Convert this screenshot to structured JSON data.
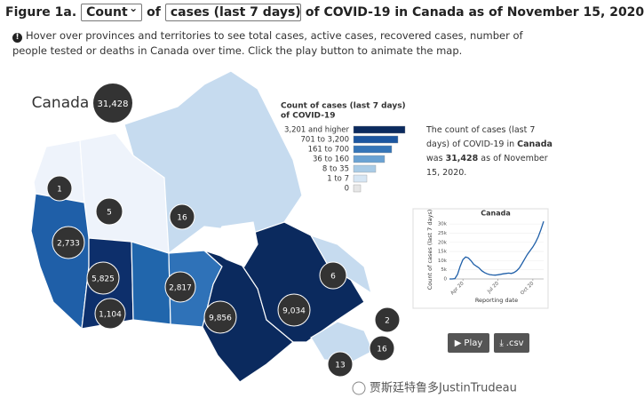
{
  "header": {
    "figure": "Figure 1a.",
    "measure_select": "Count",
    "of1": "of",
    "metric_select": "cases (last 7 days)",
    "rest": "of COVID-19 in Canada as of November 15, 2020",
    "info": "Hover over provinces and territories to see total cases, active cases, recovered cases, number of people tested or deaths in Canada over time. Click the play button to animate the map."
  },
  "map": {
    "country": "Canada",
    "country_total": "31,428",
    "regions": [
      {
        "name": "Yukon",
        "value": "1"
      },
      {
        "name": "Northwest Territories",
        "value": "5"
      },
      {
        "name": "Nunavut",
        "value": "16"
      },
      {
        "name": "British Columbia",
        "value": "2,733"
      },
      {
        "name": "Alberta",
        "value": "5,825"
      },
      {
        "name": "Saskatchewan",
        "value": "1,104"
      },
      {
        "name": "Manitoba",
        "value": "2,817"
      },
      {
        "name": "Ontario",
        "value": "9,856"
      },
      {
        "name": "Quebec",
        "value": "9,034"
      },
      {
        "name": "Newfoundland and Labrador",
        "value": "6"
      },
      {
        "name": "Prince Edward Island",
        "value": "2"
      },
      {
        "name": "Nova Scotia",
        "value": "16"
      },
      {
        "name": "New Brunswick",
        "value": "13"
      }
    ]
  },
  "legend": {
    "title_line1": "Count of cases (last 7 days)",
    "title_line2": "of COVID-19",
    "items": [
      {
        "label": "3,201 and higher",
        "color": "#0b2a5e"
      },
      {
        "label": "701 to 3,200",
        "color": "#1c56a0"
      },
      {
        "label": "161 to 700",
        "color": "#3575b8"
      },
      {
        "label": "36 to 160",
        "color": "#6aa2d3"
      },
      {
        "label": "8 to 35",
        "color": "#a9cbe6"
      },
      {
        "label": "1 to 7",
        "color": "#d6e6f4"
      },
      {
        "label": "0",
        "color": "#e6e6e6"
      }
    ]
  },
  "summary": {
    "part1": "The count of cases (last 7 days)",
    "part2": "of COVID-19 in",
    "region": "Canada",
    "part3": "was",
    "value": "31,428",
    "part4": "as of November 15, 2020."
  },
  "trend": {
    "type": "line",
    "title": "Canada",
    "y_label": "Count of cases (last 7 days)",
    "x_label": "Reporting date",
    "color": "#1f5fa8",
    "values": [
      0,
      0,
      200,
      2500,
      7000,
      10500,
      12000,
      11500,
      10000,
      8000,
      7000,
      6000,
      4500,
      3500,
      2800,
      2400,
      2200,
      2100,
      2300,
      2500,
      2800,
      3000,
      3200,
      3000,
      3500,
      4500,
      6000,
      8500,
      11000,
      13500,
      15500,
      17500,
      20000,
      23000,
      27000,
      31428
    ],
    "ylim": [
      0,
      32000
    ],
    "yticks": [
      0,
      {
        "value": 5000,
        "label": "5k"
      },
      {
        "value": 10000,
        "label": "10k"
      },
      {
        "value": 15000,
        "label": "15k"
      },
      {
        "value": 20000,
        "label": "20k"
      },
      {
        "value": 25000,
        "label": "25k"
      },
      {
        "value": 30000,
        "label": "30k"
      }
    ],
    "xticks": [
      {
        "value": 5,
        "label": "Apr 20"
      },
      {
        "value": 18,
        "label": "Jul 20"
      },
      {
        "value": 31,
        "label": "Oct 20"
      }
    ]
  },
  "buttons": {
    "play": "Play",
    "csv": ".csv"
  },
  "watermark": "贾斯廷特鲁多JustinTrudeau"
}
